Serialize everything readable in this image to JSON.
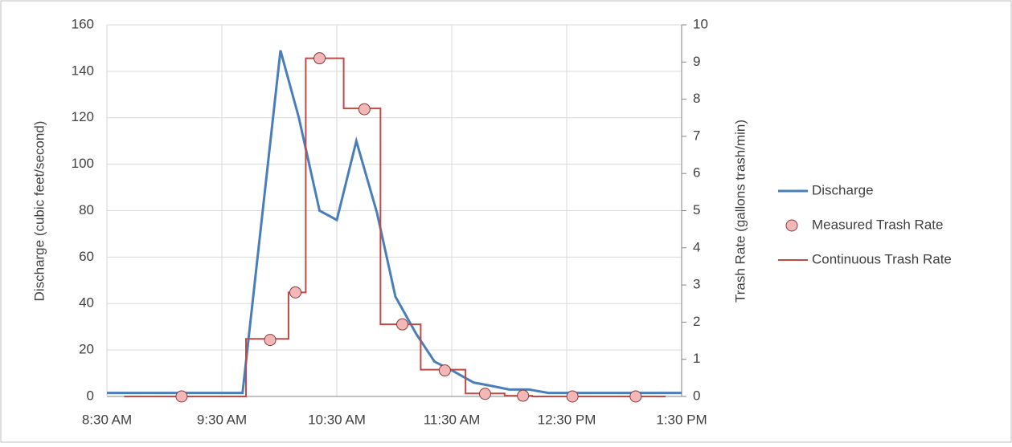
{
  "chart_data": {
    "type": "line",
    "ylabel": "Discharge (cubic feet/second)",
    "y2label": "Trash Rate (gallons trash/min)",
    "xlim": [
      8.5,
      13.5
    ],
    "xticks": [
      {
        "value": 8.5,
        "label": "8:30 AM"
      },
      {
        "value": 9.5,
        "label": "9:30 AM"
      },
      {
        "value": 10.5,
        "label": "10:30 AM"
      },
      {
        "value": 11.5,
        "label": "11:30 AM"
      },
      {
        "value": 12.5,
        "label": "12:30 PM"
      },
      {
        "value": 13.5,
        "label": "1:30 PM"
      }
    ],
    "ylim": [
      0,
      160
    ],
    "yticks": [
      0,
      20,
      40,
      60,
      80,
      100,
      120,
      140,
      160
    ],
    "y2lim": [
      0,
      10
    ],
    "y2ticks": [
      0,
      1,
      2,
      3,
      4,
      5,
      6,
      7,
      8,
      9,
      10
    ],
    "grid": true,
    "legend": "right",
    "series": [
      {
        "name": "Discharge",
        "color": "#4a7ebb",
        "style": "line",
        "x": [
          8.5,
          9.68,
          10.01,
          10.17,
          10.35,
          10.5,
          10.67,
          10.85,
          11.01,
          11.19,
          11.35,
          11.51,
          11.69,
          11.85,
          12.0,
          12.17,
          12.34,
          13.5
        ],
        "values": [
          1.5,
          1.5,
          149,
          120,
          80,
          76,
          110,
          79,
          43,
          27,
          15,
          11,
          6,
          4.5,
          3,
          3,
          1.5,
          1.5
        ]
      },
      {
        "name": "Measured Trash Rate",
        "color": "#f2b8b8",
        "style": "marker",
        "axis": "y2",
        "x": [
          9.15,
          9.92,
          10.14,
          10.35,
          10.74,
          11.07,
          11.44,
          11.79,
          12.12,
          12.55,
          13.1
        ],
        "values": [
          0,
          1.52,
          2.8,
          9.1,
          7.73,
          1.94,
          0.7,
          0.07,
          0.02,
          0,
          0
        ]
      },
      {
        "name": "Continuous Trash Rate",
        "color": "#be4b48",
        "style": "step",
        "axis": "y2",
        "x": [
          8.65,
          9.71,
          10.08,
          10.23,
          10.56,
          10.88,
          11.23,
          11.62,
          11.96,
          12.2,
          13.36
        ],
        "values": [
          0,
          1.55,
          2.8,
          9.1,
          7.75,
          1.94,
          0.72,
          0.08,
          0.02,
          0,
          0
        ]
      }
    ]
  }
}
